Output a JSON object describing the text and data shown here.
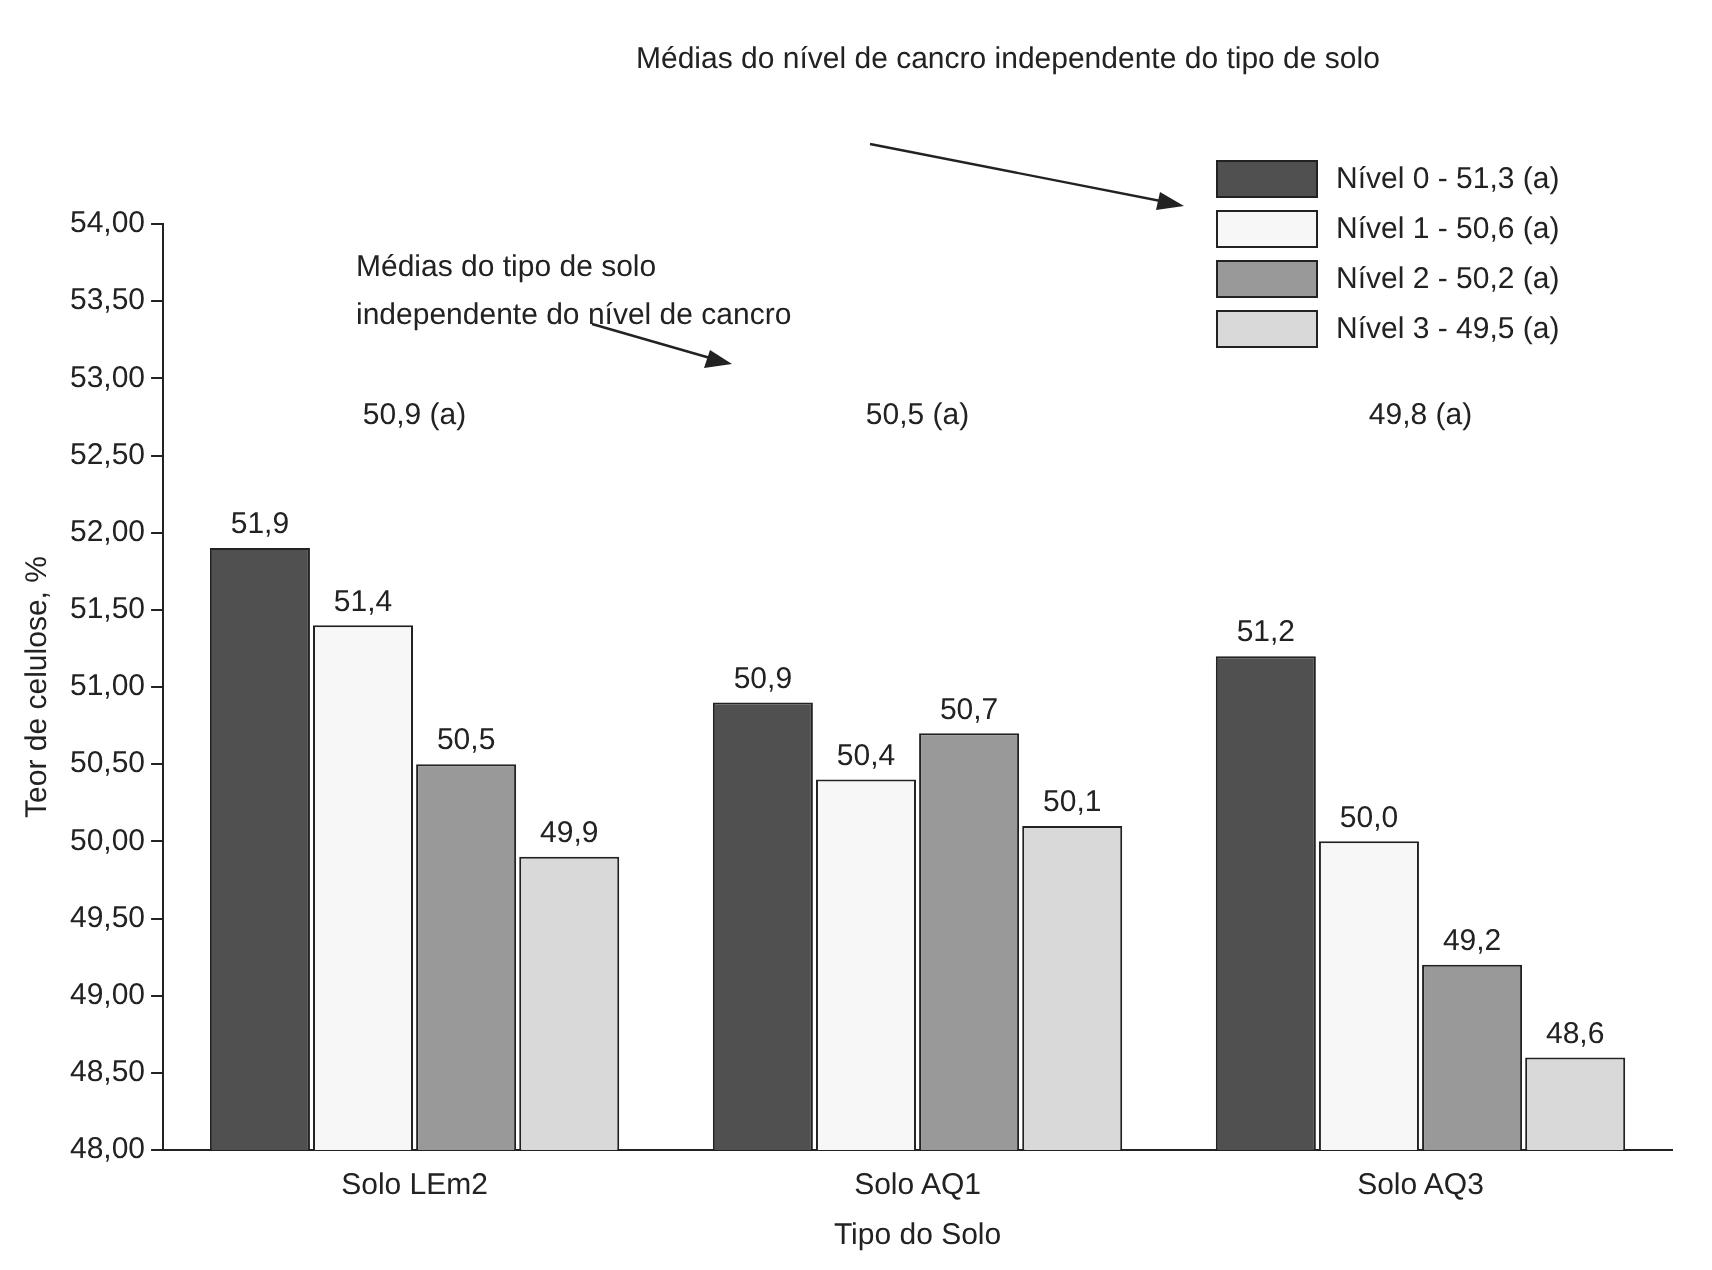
{
  "chart_data": {
    "type": "bar",
    "xlabel": "Tipo do Solo",
    "ylabel": "Teor de celulose, %",
    "categories": [
      "Solo LEm2",
      "Solo AQ1",
      "Solo AQ3"
    ],
    "series": [
      {
        "name": "Nível 0 - 51,3 (a)",
        "color": "#505050",
        "values": [
          51.9,
          50.9,
          51.2
        ],
        "value_labels": [
          "51,9",
          "50,9",
          "51,2"
        ]
      },
      {
        "name": "Nível 1 - 50,6 (a)",
        "color": "#f7f7f7",
        "values": [
          51.4,
          50.4,
          50.0
        ],
        "value_labels": [
          "51,4",
          "50,4",
          "50,0"
        ]
      },
      {
        "name": "Nível 2 - 50,2 (a)",
        "color": "#999999",
        "values": [
          50.5,
          50.7,
          49.2
        ],
        "value_labels": [
          "50,5",
          "50,7",
          "49,2"
        ]
      },
      {
        "name": "Nível 3 - 49,5 (a)",
        "color": "#d9d9d9",
        "values": [
          49.9,
          50.1,
          48.6
        ],
        "value_labels": [
          "49,9",
          "50,1",
          "48,6"
        ]
      }
    ],
    "ylim": [
      48,
      54
    ],
    "yticks": [
      {
        "value": 48,
        "label": "48,00"
      },
      {
        "value": 48.5,
        "label": "48,50"
      },
      {
        "value": 49,
        "label": "49,00"
      },
      {
        "value": 49.5,
        "label": "49,50"
      },
      {
        "value": 50,
        "label": "50,00"
      },
      {
        "value": 50.5,
        "label": "50,50"
      },
      {
        "value": 51,
        "label": "51,00"
      },
      {
        "value": 51.5,
        "label": "51,50"
      },
      {
        "value": 52,
        "label": "52,00"
      },
      {
        "value": 52.5,
        "label": "52,50"
      },
      {
        "value": 53,
        "label": "53,00"
      },
      {
        "value": 53.5,
        "label": "53,50"
      },
      {
        "value": 54,
        "label": "54,00"
      }
    ],
    "annotations": [
      "Médias do nível de cancro independente do tipo de solo",
      "Médias do tipo de solo\nindependente do nível de cancro",
      "50,9 (a)",
      "50,5 (a)",
      "49,8 (a)"
    ],
    "grid": false,
    "legend": "top right"
  }
}
